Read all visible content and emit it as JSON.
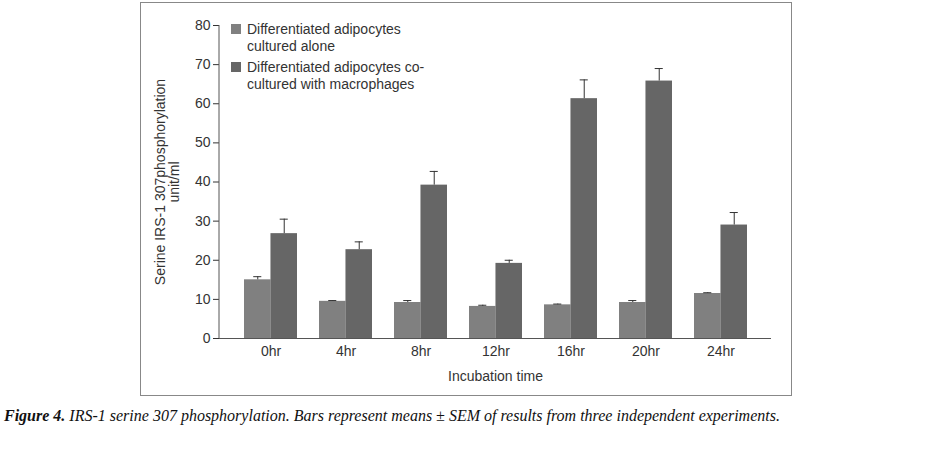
{
  "chart_data": {
    "type": "bar",
    "x_label": "Incubation time",
    "y_label": "Serine IRS-1 307phosphorylation\nunit/ml",
    "caption": "Figure 4. IRS-1 serine 307 phosphorylation. Bars represent means ± SEM of results from three independent experiments.",
    "categories": [
      "0hr",
      "4hr",
      "8hr",
      "12hr",
      "16hr",
      "20hr",
      "24hr"
    ],
    "series": [
      {
        "name": "Differentiated adipocytes cultured alone",
        "color": "#808080",
        "values": [
          15,
          9.5,
          9.2,
          8.2,
          8.6,
          9.2,
          11.5
        ],
        "errors": [
          0.8,
          0.2,
          0.5,
          0.3,
          0.2,
          0.5,
          0.2
        ]
      },
      {
        "name": "Differentiated adipocytes co-cultured with macrophages",
        "color": "#666666",
        "values": [
          26.8,
          22.7,
          39.2,
          19.2,
          61.3,
          65.8,
          29
        ],
        "errors": [
          3.7,
          2,
          3.5,
          0.8,
          4.8,
          3.2,
          3.2
        ]
      }
    ],
    "ylim": [
      0,
      80
    ],
    "yticks": [
      0,
      10,
      20,
      30,
      40,
      50,
      60,
      70,
      80
    ],
    "grid": false,
    "legend": "upper left"
  }
}
